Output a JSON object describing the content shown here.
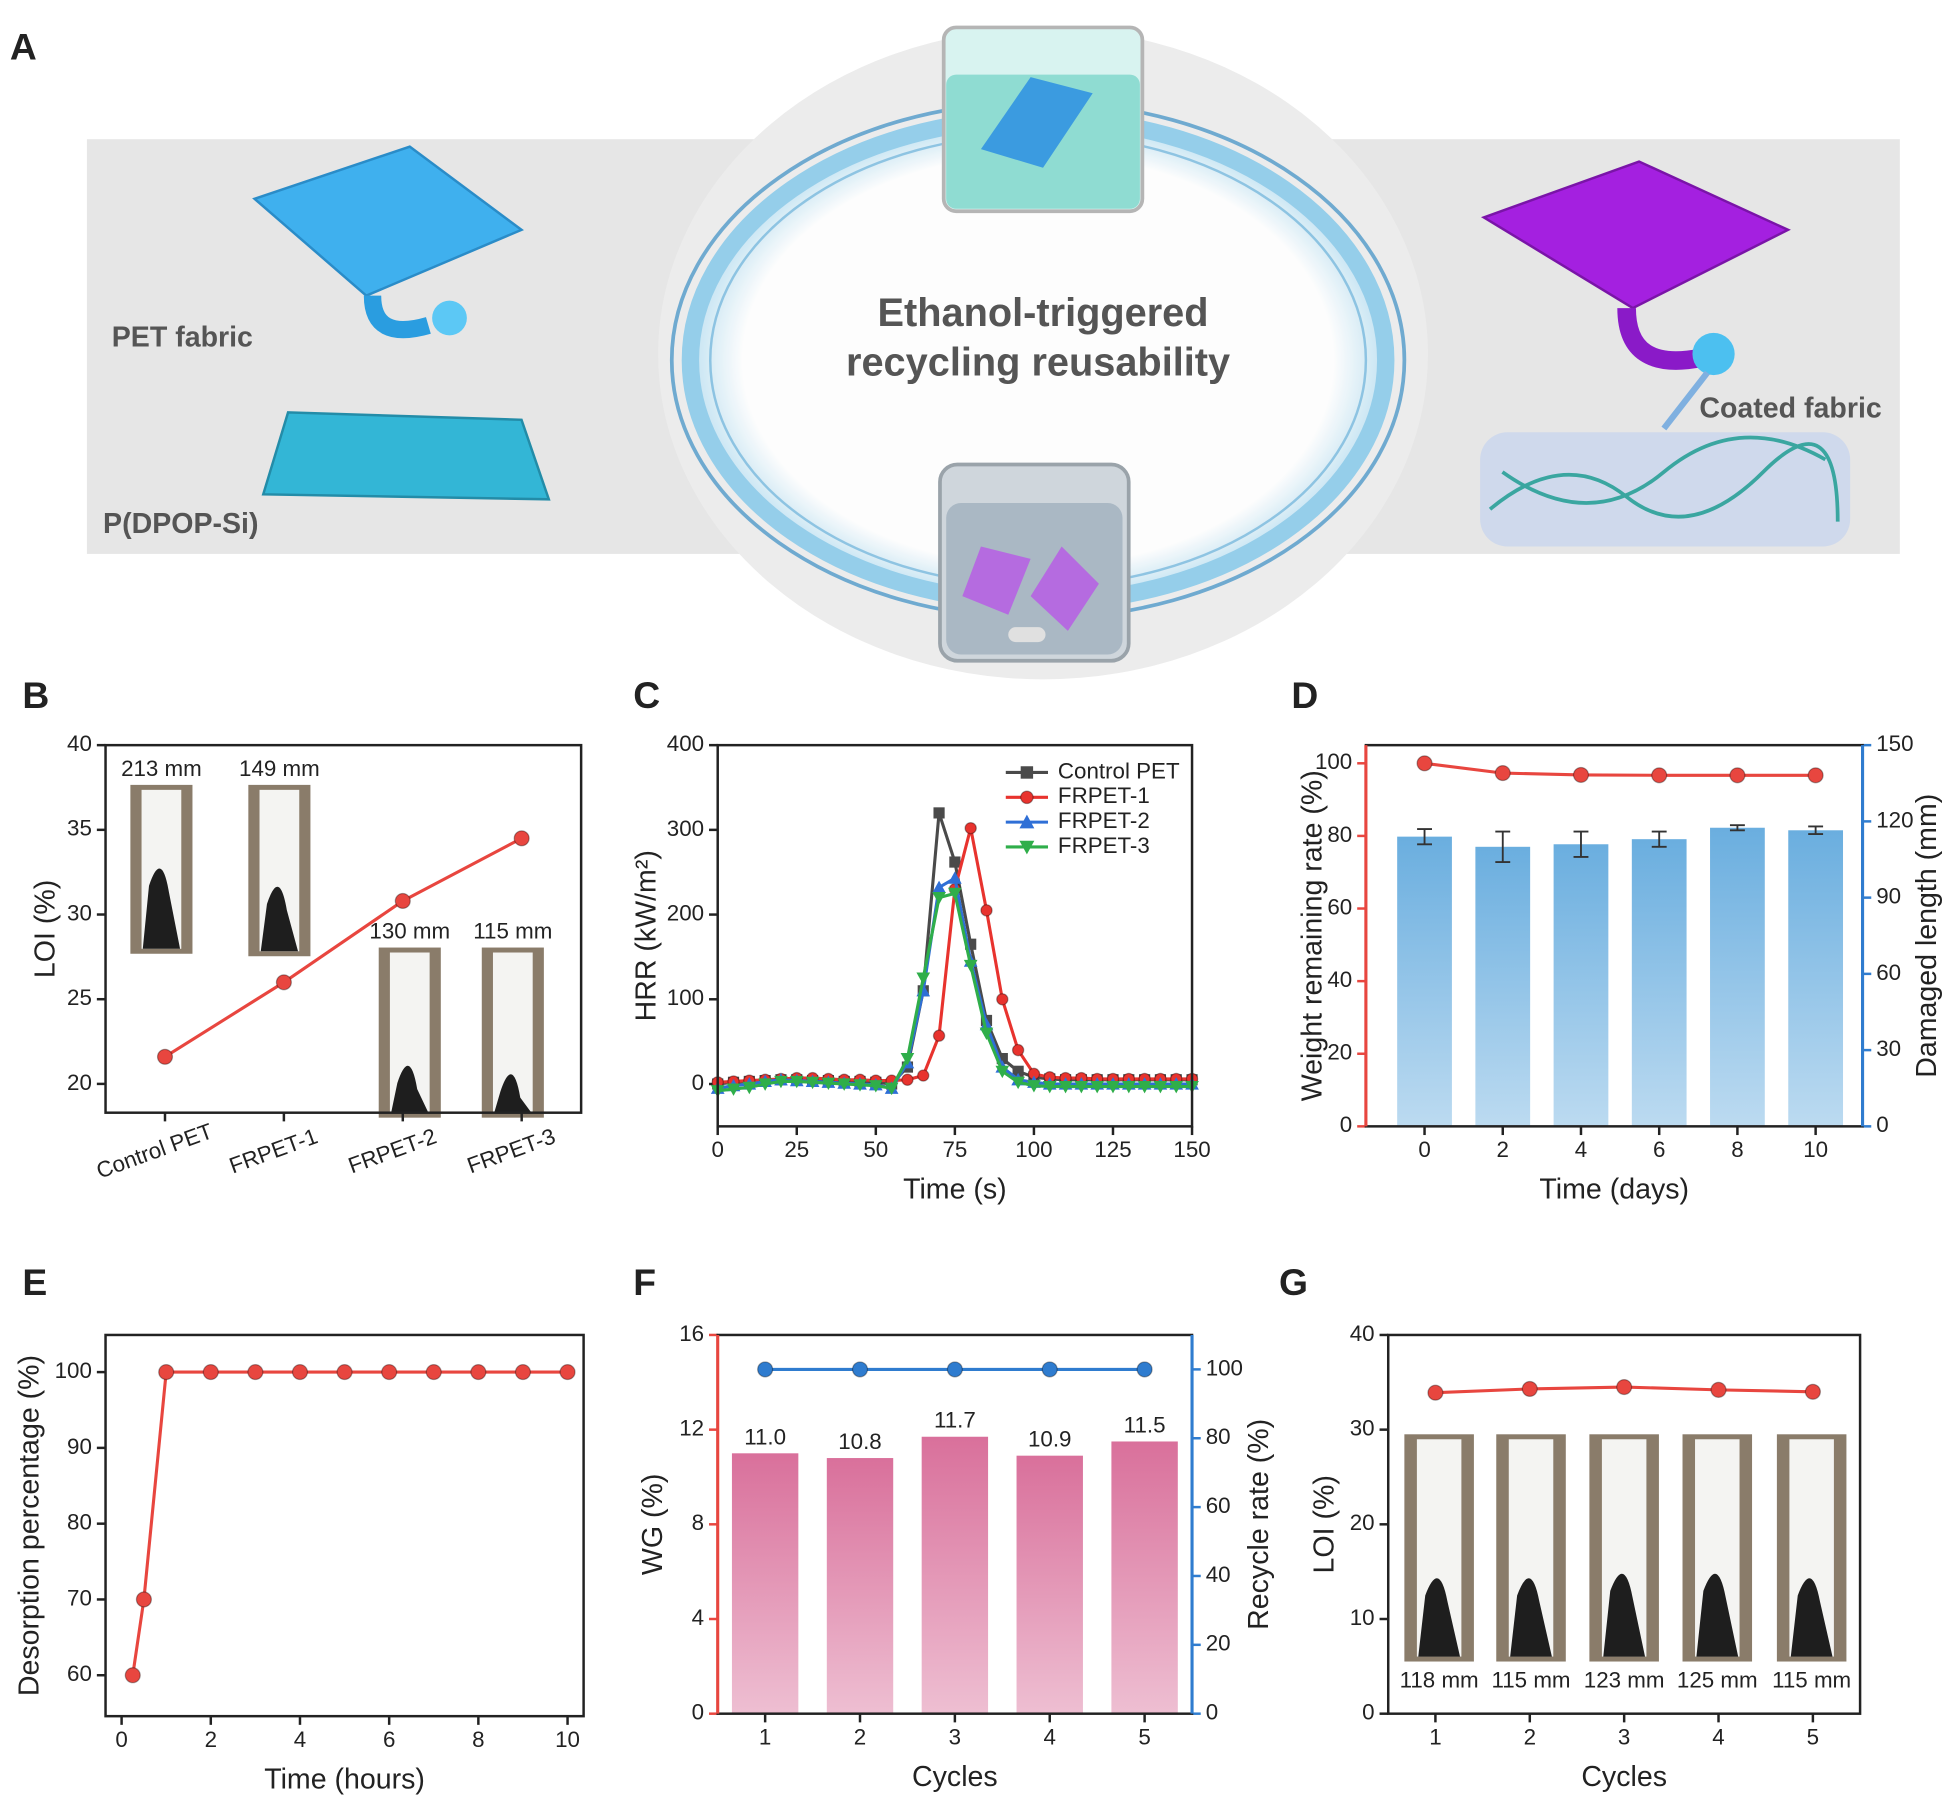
{
  "panel_a": {
    "label": "A",
    "pet_fabric": "PET fabric",
    "film": "P(DPOP-Si)",
    "title_line1": "Ethanol-triggered",
    "title_line2": "recycling reusability",
    "coated": "Coated fabric"
  },
  "chart_data": [
    {
      "panel_label": "B",
      "type": "line",
      "categories": [
        "Control PET",
        "FRPET-1",
        "FRPET-2",
        "FRPET-3"
      ],
      "values": [
        21.6,
        26.0,
        30.8,
        34.5
      ],
      "color": "#e8463f",
      "marker": "circle",
      "ylabel": "LOI (%)",
      "ylim": [
        18.3,
        40
      ],
      "yticks": [
        20,
        25,
        30,
        35,
        40
      ],
      "xtick_rotation": -20,
      "annotations": [
        "213 mm",
        "149 mm",
        "130 mm",
        "115 mm"
      ]
    },
    {
      "panel_label": "C",
      "type": "line",
      "xlabel": "Time (s)",
      "ylabel": "HRR (kW/m²)",
      "x": [
        0,
        5,
        10,
        15,
        20,
        25,
        30,
        35,
        40,
        45,
        50,
        55,
        60,
        65,
        70,
        75,
        80,
        85,
        90,
        95,
        100,
        105,
        110,
        115,
        120,
        125,
        130,
        135,
        140,
        145,
        150
      ],
      "xlim": [
        0,
        150
      ],
      "xticks": [
        0,
        25,
        50,
        75,
        100,
        125,
        150
      ],
      "ylim": [
        -50,
        400
      ],
      "yticks": [
        0,
        100,
        200,
        300,
        400
      ],
      "legend": "upper right",
      "series": [
        {
          "name": "Control PET",
          "color": "#4a4a4a",
          "marker": "square",
          "values": [
            0,
            2,
            3,
            4,
            5,
            5,
            4,
            4,
            3,
            3,
            2,
            0,
            20,
            110,
            320,
            262,
            165,
            75,
            30,
            15,
            8,
            6,
            5,
            5,
            5,
            5,
            5,
            5,
            5,
            5,
            5
          ]
        },
        {
          "name": "FRPET-1",
          "color": "#e8332e",
          "marker": "circle",
          "values": [
            2,
            3,
            4,
            5,
            6,
            7,
            7,
            6,
            5,
            5,
            4,
            4,
            5,
            10,
            57,
            230,
            302,
            205,
            100,
            40,
            12,
            8,
            7,
            7,
            6,
            6,
            6,
            6,
            6,
            6,
            6
          ]
        },
        {
          "name": "FRPET-2",
          "color": "#2f6fd6",
          "marker": "triangle-up",
          "values": [
            -5,
            -2,
            0,
            3,
            5,
            4,
            3,
            2,
            1,
            0,
            -1,
            -5,
            25,
            110,
            232,
            243,
            145,
            70,
            20,
            5,
            2,
            0,
            0,
            0,
            0,
            0,
            0,
            0,
            0,
            0,
            0
          ]
        },
        {
          "name": "FRPET-3",
          "color": "#2fae4a",
          "marker": "triangle-down",
          "values": [
            -8,
            -6,
            -4,
            0,
            3,
            3,
            2,
            1,
            0,
            -1,
            -2,
            -5,
            30,
            125,
            220,
            225,
            140,
            60,
            15,
            2,
            -2,
            -3,
            -3,
            -3,
            -3,
            -3,
            -3,
            -3,
            -3,
            -3,
            -3
          ]
        }
      ]
    },
    {
      "panel_label": "D",
      "type": "bar_line",
      "xlabel": "Time (days)",
      "ylabel": "Weight remaining rate (%)",
      "y2label": "Damaged length (mm)",
      "y_color": "#e8463f",
      "y2_color": "#2f7ccf",
      "x": [
        0,
        2,
        4,
        6,
        8,
        10
      ],
      "xlim": [
        -1.5,
        11.2
      ],
      "xticks": [
        0,
        2,
        4,
        6,
        8,
        10
      ],
      "ylim": [
        0,
        105
      ],
      "yticks": [
        0,
        20,
        40,
        60,
        80,
        100
      ],
      "y2lim": [
        0,
        150
      ],
      "y2ticks": [
        0,
        30,
        60,
        90,
        120,
        150
      ],
      "series": [
        {
          "kind": "line",
          "color": "#e8463f",
          "marker": "circle",
          "values": [
            100,
            97.3,
            96.8,
            96.7,
            96.7,
            96.7
          ]
        },
        {
          "kind": "bar",
          "axis": "y2",
          "color": "#6aaedf",
          "values": [
            114,
            110,
            111,
            113,
            117.5,
            116.5
          ],
          "errors": [
            3,
            6,
            5,
            3,
            1,
            1.5
          ]
        }
      ]
    },
    {
      "panel_label": "E",
      "type": "line",
      "xlabel": "Time (hours)",
      "ylabel": "Desorption percentage (%)",
      "x": [
        0.25,
        0.5,
        1,
        2,
        3,
        4,
        5,
        6,
        7,
        8,
        9,
        10
      ],
      "values": [
        60,
        70,
        100,
        100,
        100,
        100,
        100,
        100,
        100,
        100,
        100,
        100
      ],
      "color": "#e8463f",
      "marker": "circle",
      "xlim": [
        -0.36,
        10.36
      ],
      "xticks": [
        0,
        2,
        4,
        6,
        8,
        10
      ],
      "ylim": [
        54.6,
        104.9
      ],
      "yticks": [
        60,
        70,
        80,
        90,
        100
      ]
    },
    {
      "panel_label": "F",
      "type": "bar_line",
      "xlabel": "Cycles",
      "ylabel": "WG (%)",
      "y2label": "Recycle rate (%)",
      "y_color": "#e8463f",
      "y2_color": "#2f7ccf",
      "categories": [
        "1",
        "2",
        "3",
        "4",
        "5"
      ],
      "ylim": [
        0,
        16
      ],
      "yticks": [
        0,
        4,
        8,
        12,
        16
      ],
      "y2lim": [
        0,
        110
      ],
      "y2ticks": [
        0,
        20,
        40,
        60,
        80,
        100
      ],
      "series": [
        {
          "kind": "bar",
          "color": "#d9709b",
          "values": [
            11.0,
            10.8,
            11.7,
            10.9,
            11.5
          ],
          "value_labels": [
            "11.0",
            "10.8",
            "11.7",
            "10.9",
            "11.5"
          ]
        },
        {
          "kind": "line",
          "axis": "y2",
          "color": "#2f7ccf",
          "marker": "circle",
          "values": [
            100,
            100,
            100,
            100,
            100
          ]
        }
      ]
    },
    {
      "panel_label": "G",
      "type": "line",
      "xlabel": "Cycles",
      "ylabel": "LOI (%)",
      "categories": [
        "1",
        "2",
        "3",
        "4",
        "5"
      ],
      "values": [
        33.9,
        34.3,
        34.5,
        34.2,
        34.0
      ],
      "color": "#e8463f",
      "marker": "circle",
      "ylim": [
        0,
        40
      ],
      "yticks": [
        0,
        10,
        20,
        30,
        40
      ],
      "annotations": [
        "118 mm",
        "115 mm",
        "123 mm",
        "125 mm",
        "115 mm"
      ]
    }
  ]
}
